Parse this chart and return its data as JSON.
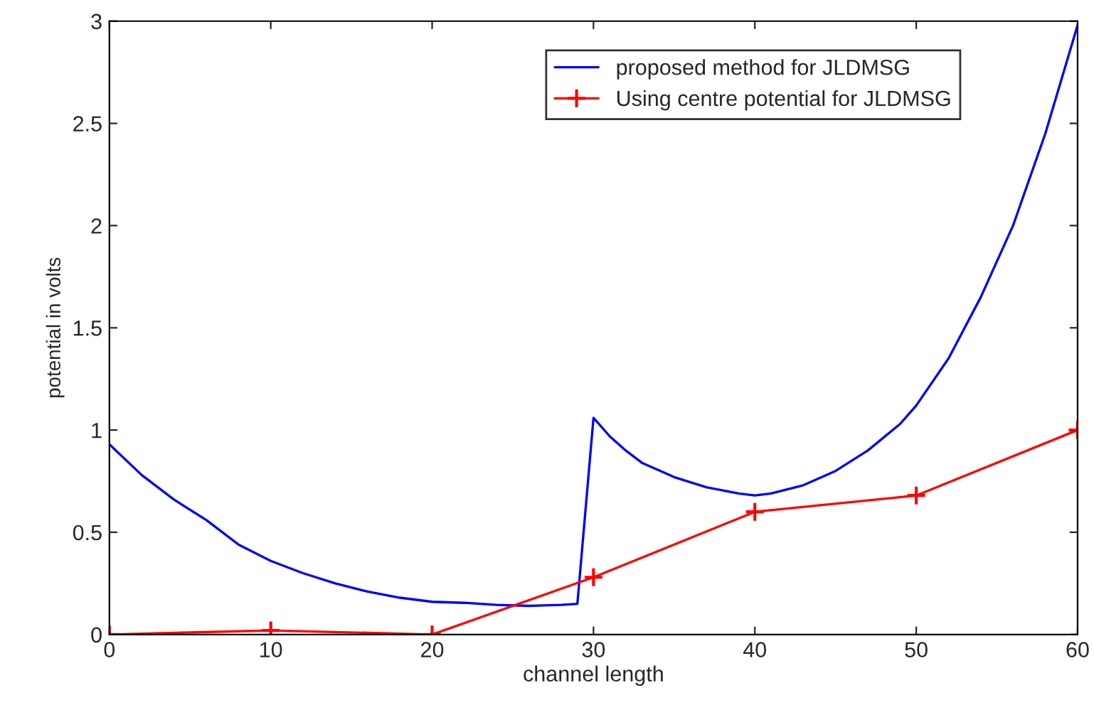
{
  "chart_data": {
    "type": "line",
    "xlabel": "channel length",
    "ylabel": "potential in volts",
    "xlim": [
      0,
      60
    ],
    "xticks": [
      0,
      10,
      20,
      30,
      40,
      50,
      60
    ],
    "ylim": [
      0,
      3
    ],
    "yticks": [
      0,
      0.5,
      1,
      1.5,
      2,
      2.5,
      3
    ],
    "grid": false,
    "legend": "top right",
    "series": [
      {
        "name": "proposed method for JLDMSG",
        "color": "#0000ff",
        "marker": "none",
        "x": [
          0,
          2,
          4,
          6,
          8,
          10,
          12,
          14,
          16,
          18,
          20,
          22,
          24,
          26,
          28,
          29,
          30,
          31,
          32,
          33,
          35,
          37,
          39,
          40,
          41,
          43,
          45,
          47,
          49,
          50,
          52,
          54,
          56,
          58,
          60
        ],
        "values": [
          0.93,
          0.78,
          0.66,
          0.56,
          0.44,
          0.36,
          0.3,
          0.25,
          0.21,
          0.18,
          0.16,
          0.155,
          0.145,
          0.14,
          0.145,
          0.15,
          1.06,
          0.97,
          0.9,
          0.84,
          0.77,
          0.72,
          0.69,
          0.68,
          0.69,
          0.73,
          0.8,
          0.9,
          1.03,
          1.12,
          1.35,
          1.65,
          2.0,
          2.45,
          2.98
        ]
      },
      {
        "name": "Using centre potential for JLDMSG",
        "color": "#ff0000",
        "marker": "cross",
        "x": [
          0,
          10,
          20,
          30,
          40,
          50,
          60
        ],
        "values": [
          0,
          0.02,
          0,
          0.28,
          0.6,
          0.68,
          1.0
        ]
      }
    ]
  }
}
